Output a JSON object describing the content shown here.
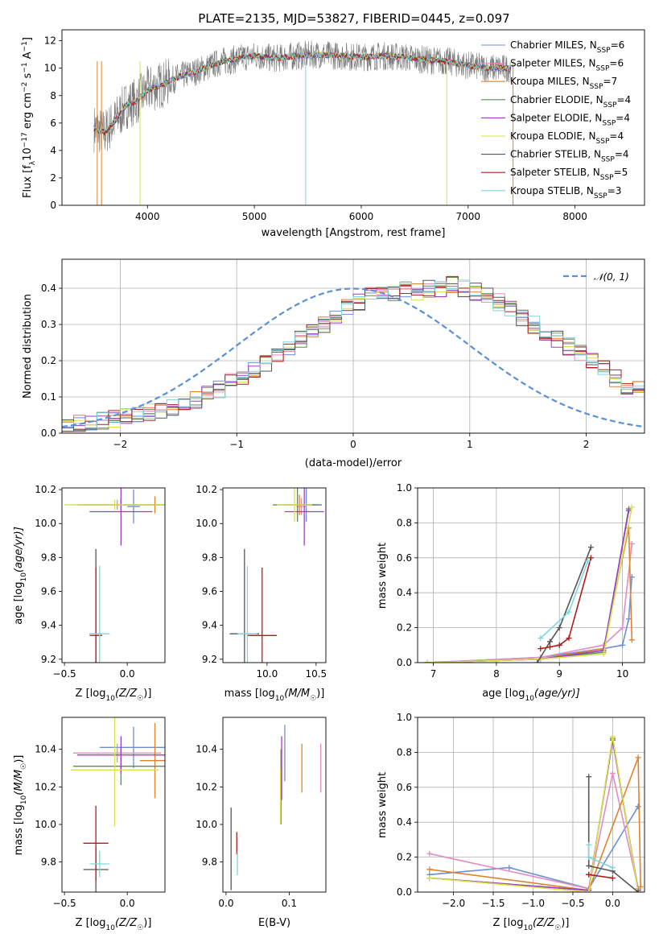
{
  "figure": {
    "title": "PLATE=2135, MJD=53827, FIBERID=0445, z=0.097"
  },
  "colors": {
    "Chabrier MILES": "#6b8fd6",
    "Salpeter MILES": "#e58bc4",
    "Kroupa MILES": "#e0822b",
    "Chabrier ELODIE": "#5a8a5a",
    "Salpeter ELODIE": "#9a3fbf",
    "Kroupa ELODIE": "#d8e04a",
    "Chabrier STELIB": "#555555",
    "Salpeter STELIB": "#b01c1c",
    "Kroupa STELIB": "#7ed6de",
    "gaussian": "#5b8fd6"
  },
  "chart_data": [
    {
      "id": "spectrum",
      "type": "line",
      "title": "PLATE=2135, MJD=53827, FIBERID=0445, z=0.097",
      "xlabel": "wavelength [Angstrom, rest frame]",
      "ylabel_main": "Flux [f",
      "ylabel_sub1": "λ",
      "ylabel_mid": "10",
      "ylabel_sup1": "−17",
      "ylabel_mid2": " erg cm",
      "ylabel_sup2": "−2",
      "ylabel_mid3": " s",
      "ylabel_sup3": "−1",
      "ylabel_mid4": " A",
      "ylabel_sup4": "−1",
      "ylabel_end": "]",
      "xlim": [
        3200,
        8650
      ],
      "ylim": [
        0,
        12.8
      ],
      "xticks": [
        4000,
        5000,
        6000,
        7000,
        8000
      ],
      "yticks": [
        0,
        2,
        4,
        6,
        8,
        10,
        12
      ],
      "grid": false,
      "legend_position": "right",
      "continuum": {
        "x": [
          3500,
          3600,
          3700,
          3800,
          3900,
          4000,
          4100,
          4200,
          4300,
          4400,
          4500,
          4600,
          4700,
          4800,
          4900,
          5000,
          5200,
          5400,
          5600,
          5800,
          6000,
          6200,
          6400,
          6600,
          6800,
          7000,
          7200,
          7400
        ],
        "y": [
          5.6,
          5.3,
          6.2,
          7.3,
          7.6,
          8.4,
          8.7,
          9.0,
          9.4,
          9.6,
          9.9,
          10.2,
          10.5,
          10.6,
          10.8,
          10.9,
          10.7,
          10.9,
          11.0,
          10.9,
          10.8,
          10.9,
          10.8,
          10.6,
          10.5,
          10.2,
          10.0,
          10.0
        ]
      },
      "series": [
        {
          "name": "Chabrier MILES",
          "ssp": "6"
        },
        {
          "name": "Salpeter MILES",
          "ssp": "6"
        },
        {
          "name": "Kroupa MILES",
          "ssp": "7"
        },
        {
          "name": "Chabrier ELODIE",
          "ssp": "4"
        },
        {
          "name": "Salpeter ELODIE",
          "ssp": "4"
        },
        {
          "name": "Kroupa ELODIE",
          "ssp": "4"
        },
        {
          "name": "Chabrier STELIB",
          "ssp": "4"
        },
        {
          "name": "Salpeter STELIB",
          "ssp": "5"
        },
        {
          "name": "Kroupa STELIB",
          "ssp": "3"
        }
      ]
    },
    {
      "id": "residuals",
      "type": "step-histogram",
      "xlabel": "(data-model)/error",
      "ylabel": "Normed distribution",
      "xlim": [
        -2.5,
        2.5
      ],
      "ylim": [
        0,
        0.48
      ],
      "xticks": [
        -2,
        -1,
        0,
        1,
        2
      ],
      "yticks": [
        0.0,
        0.1,
        0.2,
        0.3,
        0.4
      ],
      "grid": true,
      "legend_position": "top-right",
      "bin_width": 0.1,
      "bin_start": -2.5,
      "envelope_bins": [
        0.02,
        0.025,
        0.03,
        0.034,
        0.04,
        0.045,
        0.05,
        0.056,
        0.06,
        0.07,
        0.08,
        0.09,
        0.105,
        0.12,
        0.14,
        0.15,
        0.17,
        0.19,
        0.21,
        0.23,
        0.26,
        0.28,
        0.3,
        0.32,
        0.35,
        0.36,
        0.38,
        0.39,
        0.39,
        0.4,
        0.39,
        0.4,
        0.4,
        0.41,
        0.4,
        0.39,
        0.38,
        0.36,
        0.34,
        0.32,
        0.3,
        0.28,
        0.26,
        0.24,
        0.22,
        0.2,
        0.18,
        0.15,
        0.13,
        0.12,
        0.1
      ],
      "gaussian_label": "𝒩(0, 1)"
    },
    {
      "id": "age-vs-Z",
      "type": "errorbar",
      "xlabel_pre": "Z [log",
      "xlabel_sub": "10",
      "xlabel_post": "(Z/Z",
      "xlabel_sun": "☉",
      "xlabel_end": ")]",
      "ylabel_pre": "age  [log",
      "ylabel_sub": "10",
      "ylabel_post": "(age/yr)]",
      "xlim": [
        -0.52,
        0.3
      ],
      "ylim": [
        9.18,
        10.21
      ],
      "xticks": [
        -0.5,
        0.0
      ],
      "yticks": [
        9.2,
        9.4,
        9.6,
        9.8,
        10.0,
        10.2
      ],
      "xticklabels": [
        "−0.5",
        "0.0"
      ],
      "points": [
        {
          "series": "Chabrier MILES",
          "x": 0.05,
          "y": 10.1,
          "xerr": 0.05,
          "yerr": 0.1
        },
        {
          "series": "Salpeter MILES",
          "x": -0.08,
          "y": 10.11,
          "xerr": 0.3,
          "yerr": 0.03
        },
        {
          "series": "Kroupa MILES",
          "x": 0.22,
          "y": 10.11,
          "xerr": 0.08,
          "yerr": 0.05
        },
        {
          "series": "Chabrier ELODIE",
          "x": -0.05,
          "y": 10.11,
          "xerr": 0.35,
          "yerr": 0.04
        },
        {
          "series": "Salpeter ELODIE",
          "x": -0.05,
          "y": 10.07,
          "xerr": 0.25,
          "yerr": 0.2
        },
        {
          "series": "Kroupa ELODIE",
          "x": -0.1,
          "y": 10.11,
          "xerr": 0.4,
          "yerr": 0.03
        },
        {
          "series": "Chabrier STELIB",
          "x": -0.25,
          "y": 9.35,
          "xerr": 0.05,
          "yerr": 0.5
        },
        {
          "series": "Salpeter STELIB",
          "x": -0.25,
          "y": 9.34,
          "xerr": 0.05,
          "yerr": 0.4
        },
        {
          "series": "Kroupa STELIB",
          "x": -0.22,
          "y": 9.35,
          "xerr": 0.08,
          "yerr": 0.4
        }
      ]
    },
    {
      "id": "age-vs-mass",
      "type": "errorbar",
      "xlabel_pre": "mass [log",
      "xlabel_sub": "10",
      "xlabel_post": "(M/M",
      "xlabel_sun": "☉",
      "xlabel_end": ")]",
      "xlim": [
        9.55,
        10.6
      ],
      "ylim": [
        9.18,
        10.21
      ],
      "xticks": [
        10.0,
        10.5
      ],
      "yticks": [
        9.2,
        9.4,
        9.6,
        9.8,
        10.0,
        10.2
      ],
      "xticklabels": [
        "10.0",
        "10.5"
      ],
      "points": [
        {
          "series": "Chabrier MILES",
          "x": 10.4,
          "y": 10.11,
          "xerr": 0.12,
          "yerr": 0.1
        },
        {
          "series": "Salpeter MILES",
          "x": 10.35,
          "y": 10.1,
          "xerr": 0.05,
          "yerr": 0.05
        },
        {
          "series": "Kroupa MILES",
          "x": 10.33,
          "y": 10.11,
          "xerr": 0.15,
          "yerr": 0.06
        },
        {
          "series": "Chabrier ELODIE",
          "x": 10.31,
          "y": 10.11,
          "xerr": 0.25,
          "yerr": 0.1
        },
        {
          "series": "Salpeter ELODIE",
          "x": 10.38,
          "y": 10.07,
          "xerr": 0.2,
          "yerr": 0.2
        },
        {
          "series": "Kroupa ELODIE",
          "x": 10.28,
          "y": 10.11,
          "xerr": 0.18,
          "yerr": 0.1
        },
        {
          "series": "Chabrier STELIB",
          "x": 9.77,
          "y": 9.35,
          "xerr": 0.15,
          "yerr": 0.5
        },
        {
          "series": "Salpeter STELIB",
          "x": 9.95,
          "y": 9.34,
          "xerr": 0.15,
          "yerr": 0.4
        },
        {
          "series": "Kroupa STELIB",
          "x": 9.8,
          "y": 9.35,
          "xerr": 0.1,
          "yerr": 0.4
        }
      ]
    },
    {
      "id": "weight-vs-age",
      "type": "line",
      "xlabel_pre": "age  [log",
      "xlabel_sub": "10",
      "xlabel_post": "(age/yr)]",
      "ylabel": "mass weight",
      "xlim": [
        6.75,
        10.35
      ],
      "ylim": [
        0,
        1.0
      ],
      "xticks": [
        7,
        8,
        9,
        10
      ],
      "yticks": [
        0.0,
        0.2,
        0.4,
        0.6,
        0.8,
        1.0
      ],
      "grid": true,
      "series": [
        {
          "name": "Chabrier MILES",
          "x": [
            6.9,
            8.7,
            9.7,
            10.0,
            10.1,
            10.15
          ],
          "y": [
            0.0,
            0.03,
            0.08,
            0.1,
            0.25,
            0.49
          ]
        },
        {
          "name": "Salpeter MILES",
          "x": [
            6.9,
            8.7,
            9.7,
            10.0,
            10.15
          ],
          "y": [
            0.0,
            0.03,
            0.1,
            0.2,
            0.68
          ]
        },
        {
          "name": "Kroupa MILES",
          "x": [
            6.9,
            8.7,
            9.7,
            10.1,
            10.15
          ],
          "y": [
            0.0,
            0.02,
            0.08,
            0.77,
            0.13
          ]
        },
        {
          "name": "Chabrier ELODIE",
          "x": [
            6.9,
            8.7,
            9.7,
            10.1
          ],
          "y": [
            0.0,
            0.02,
            0.06,
            0.88
          ]
        },
        {
          "name": "Salpeter ELODIE",
          "x": [
            6.9,
            8.7,
            9.7,
            10.1
          ],
          "y": [
            0.0,
            0.02,
            0.07,
            0.87
          ]
        },
        {
          "name": "Kroupa ELODIE",
          "x": [
            6.9,
            8.7,
            9.7,
            10.15
          ],
          "y": [
            0.0,
            0.02,
            0.05,
            0.89
          ]
        },
        {
          "name": "Chabrier STELIB",
          "x": [
            8.65,
            8.85,
            9.0,
            9.5
          ],
          "y": [
            0.0,
            0.12,
            0.2,
            0.66
          ]
        },
        {
          "name": "Salpeter STELIB",
          "x": [
            8.7,
            8.85,
            9.0,
            9.15,
            9.5
          ],
          "y": [
            0.08,
            0.09,
            0.1,
            0.14,
            0.6
          ]
        },
        {
          "name": "Kroupa STELIB",
          "x": [
            8.7,
            9.15,
            9.45
          ],
          "y": [
            0.14,
            0.29,
            0.58
          ]
        }
      ]
    },
    {
      "id": "mass-vs-Z",
      "type": "errorbar",
      "xlabel_pre": "Z [log",
      "xlabel_sub": "10",
      "xlabel_post": "(Z/Z",
      "xlabel_sun": "☉",
      "xlabel_end": ")]",
      "ylabel_pre": "mass [log",
      "ylabel_sub": "10",
      "ylabel_post": "(M/M",
      "ylabel_sun": "☉",
      "ylabel_end": ")]",
      "xlim": [
        -0.52,
        0.3
      ],
      "ylim": [
        9.64,
        10.57
      ],
      "xticks": [
        -0.5,
        0.0
      ],
      "yticks": [
        9.8,
        10.0,
        10.2,
        10.4
      ],
      "xticklabels": [
        "−0.5",
        "0.0"
      ],
      "points": [
        {
          "series": "Chabrier MILES",
          "x": 0.05,
          "y": 10.41,
          "xerr": 0.27,
          "yerr": 0.11
        },
        {
          "series": "Salpeter MILES",
          "x": -0.08,
          "y": 10.38,
          "xerr": 0.35,
          "yerr": 0.05
        },
        {
          "series": "Kroupa MILES",
          "x": 0.22,
          "y": 10.34,
          "xerr": 0.12,
          "yerr": 0.2
        },
        {
          "series": "Chabrier ELODIE",
          "x": -0.05,
          "y": 10.31,
          "xerr": 0.38,
          "yerr": 0.1
        },
        {
          "series": "Salpeter ELODIE",
          "x": -0.05,
          "y": 10.37,
          "xerr": 0.35,
          "yerr": 0.1
        },
        {
          "series": "Kroupa ELODIE",
          "x": -0.1,
          "y": 10.29,
          "xerr": 0.35,
          "yerr": 0.3
        },
        {
          "series": "Chabrier STELIB",
          "x": -0.25,
          "y": 9.76,
          "xerr": 0.1,
          "yerr": 0.12
        },
        {
          "series": "Salpeter STELIB",
          "x": -0.25,
          "y": 9.9,
          "xerr": 0.1,
          "yerr": 0.2
        },
        {
          "series": "Kroupa STELIB",
          "x": -0.22,
          "y": 9.79,
          "xerr": 0.08,
          "yerr": 0.07
        }
      ]
    },
    {
      "id": "mass-vs-EBV",
      "type": "errorbar",
      "xlabel": "E(B-V)",
      "xlim": [
        -0.005,
        0.158
      ],
      "ylim": [
        9.64,
        10.57
      ],
      "xticks": [
        0.0,
        0.1
      ],
      "yticks": [
        9.8,
        10.0,
        10.2,
        10.4
      ],
      "xticklabels": [
        "0.0",
        "0.1"
      ],
      "points": [
        {
          "series": "Chabrier MILES",
          "x": 0.093,
          "y": 10.38,
          "xerr": 0.0,
          "yerr": 0.15
        },
        {
          "series": "Salpeter MILES",
          "x": 0.15,
          "y": 10.3,
          "xerr": 0.0,
          "yerr": 0.13
        },
        {
          "series": "Kroupa MILES",
          "x": 0.12,
          "y": 10.3,
          "xerr": 0.0,
          "yerr": 0.13
        },
        {
          "series": "Chabrier ELODIE",
          "x": 0.087,
          "y": 10.2,
          "xerr": 0.0,
          "yerr": 0.2
        },
        {
          "series": "Salpeter ELODIE",
          "x": 0.088,
          "y": 10.3,
          "xerr": 0.0,
          "yerr": 0.17
        },
        {
          "series": "Kroupa ELODIE",
          "x": 0.086,
          "y": 10.15,
          "xerr": 0.0,
          "yerr": 0.15
        },
        {
          "series": "Chabrier STELIB",
          "x": 0.008,
          "y": 9.87,
          "xerr": 0.0,
          "yerr": 0.22
        },
        {
          "series": "Salpeter STELIB",
          "x": 0.017,
          "y": 9.9,
          "xerr": 0.0,
          "yerr": 0.06
        },
        {
          "series": "Kroupa STELIB",
          "x": 0.018,
          "y": 9.79,
          "xerr": 0.0,
          "yerr": 0.06
        }
      ]
    },
    {
      "id": "weight-vs-Z",
      "type": "line",
      "xlabel_pre": "Z [log",
      "xlabel_sub": "10",
      "xlabel_post": "(Z/Z",
      "xlabel_sun": "☉",
      "xlabel_end": ")]",
      "ylabel": "mass weight",
      "xlim": [
        -2.45,
        0.4
      ],
      "ylim": [
        0,
        1.0
      ],
      "xticks": [
        -2.0,
        -1.5,
        -1.0,
        -0.5,
        0.0
      ],
      "xticklabels": [
        "−2.0",
        "−1.5",
        "−1.0",
        "−0.5",
        "0.0"
      ],
      "yticks": [
        0.0,
        0.2,
        0.4,
        0.6,
        0.8,
        1.0
      ],
      "grid": true,
      "series": [
        {
          "name": "Chabrier MILES",
          "x": [
            -2.3,
            -1.3,
            -0.3,
            0.32
          ],
          "y": [
            0.1,
            0.14,
            0.02,
            0.49
          ]
        },
        {
          "name": "Salpeter MILES",
          "x": [
            -2.3,
            -0.3,
            0.0,
            0.32
          ],
          "y": [
            0.22,
            0.02,
            0.68,
            0.02
          ]
        },
        {
          "name": "Kroupa MILES",
          "x": [
            -2.3,
            -0.3,
            0.32,
            0.35
          ],
          "y": [
            0.13,
            0.01,
            0.77,
            0.03
          ]
        },
        {
          "name": "Chabrier ELODIE",
          "x": [
            -2.3,
            -0.3,
            0.0,
            0.32
          ],
          "y": [
            0.08,
            0.01,
            0.88,
            0.01
          ]
        },
        {
          "name": "Salpeter ELODIE",
          "x": [
            -2.3,
            -0.3,
            0.0,
            0.32
          ],
          "y": [
            0.08,
            0.01,
            0.87,
            0.01
          ]
        },
        {
          "name": "Kroupa ELODIE",
          "x": [
            -2.3,
            -0.3,
            0.0,
            0.32
          ],
          "y": [
            0.08,
            0.0,
            0.89,
            0.0
          ]
        },
        {
          "name": "Chabrier STELIB",
          "x": [
            -0.3,
            -0.3,
            0.0,
            0.32
          ],
          "y": [
            0.66,
            0.15,
            0.12,
            0.0
          ]
        },
        {
          "name": "Salpeter STELIB",
          "x": [
            -0.3,
            -0.3,
            0.0
          ],
          "y": [
            0.1,
            0.1,
            0.08
          ]
        },
        {
          "name": "Kroupa STELIB",
          "x": [
            -0.3,
            -0.3,
            0.0
          ],
          "y": [
            0.27,
            0.2,
            0.14
          ]
        }
      ]
    }
  ]
}
